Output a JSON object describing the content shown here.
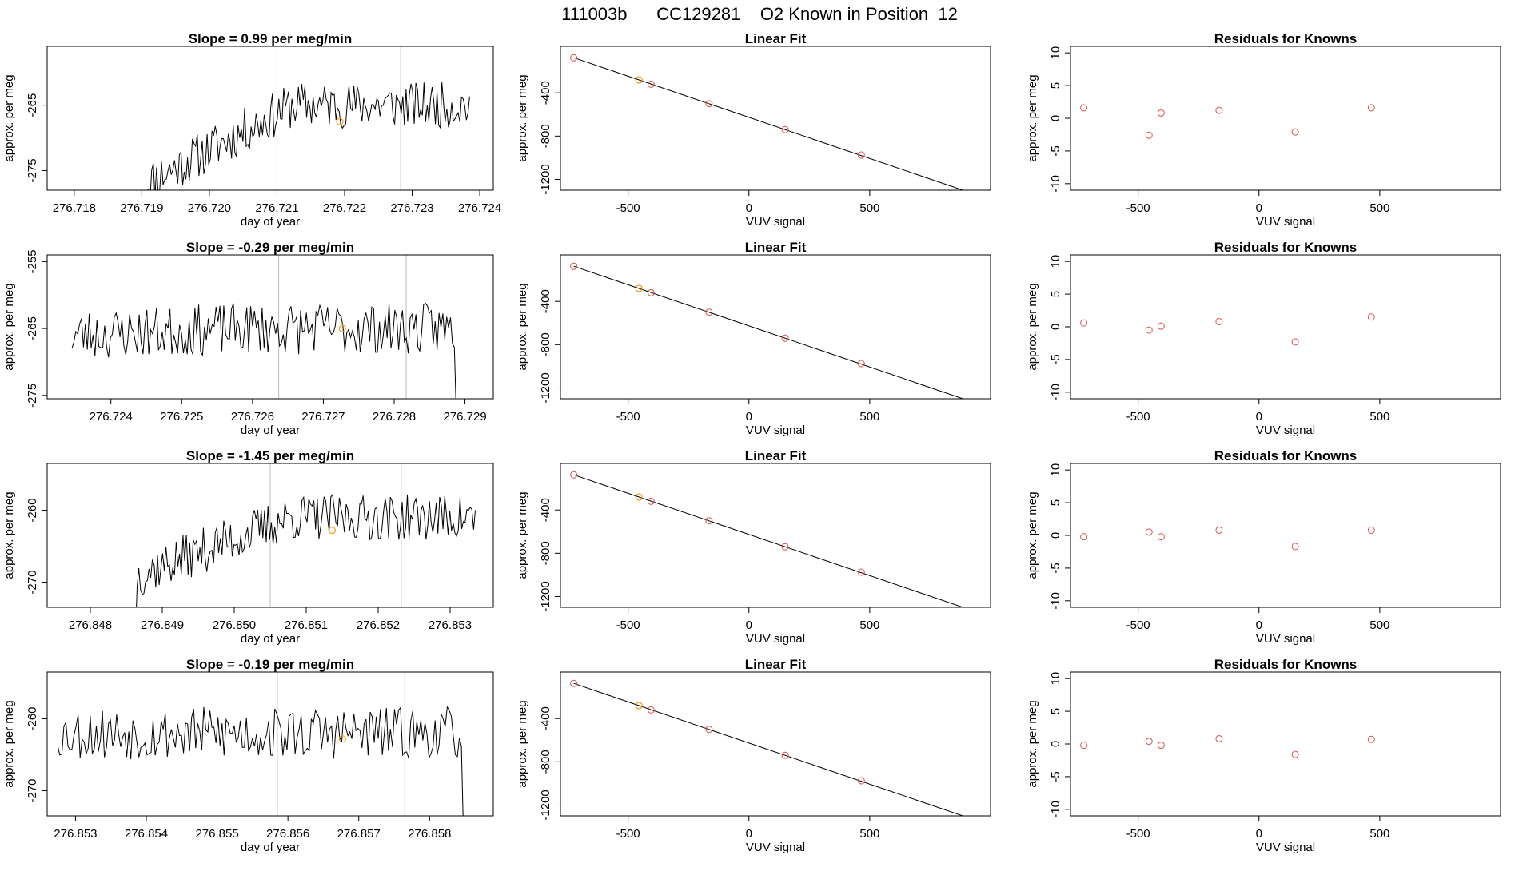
{
  "page_title": "111003b      CC129281    O2 Known in Position  12",
  "colors": {
    "line": "#000000",
    "known_point": "#d9534f",
    "position_point": "#f0a020",
    "frame": "#000000",
    "vline": "#bbbbbb"
  },
  "chart_data": [
    {
      "type": "line",
      "row": 0,
      "col": 0,
      "title": "Slope =  0.99  per meg/min",
      "xlabel": "day of year",
      "ylabel": "approx. per meg",
      "xlim": [
        276.7176,
        276.7242
      ],
      "ylim": [
        -278,
        -256
      ],
      "xticks": [
        276.718,
        276.719,
        276.72,
        276.721,
        276.722,
        276.723,
        276.724
      ],
      "xtick_labels": [
        "276.718",
        "276.719",
        "276.720",
        "276.721",
        "276.722",
        "276.723",
        "276.724"
      ],
      "yticks": [
        -275,
        -265
      ],
      "ytick_labels": [
        "-275",
        "-265"
      ],
      "vlines": [
        276.721,
        276.72283
      ],
      "series": [
        {
          "x_start": 276.71905,
          "x_end": 276.72385,
          "n": 200,
          "base_start": -277,
          "base_end": -265,
          "noise": 2.2,
          "seed": 11,
          "tail": "none",
          "head_drop": true
        }
      ],
      "highlight": {
        "x": 276.72193,
        "y": -267.5
      }
    },
    {
      "type": "scatter",
      "row": 0,
      "col": 1,
      "title": "Linear Fit",
      "xlabel": "VUV signal",
      "ylabel": "approx. per meg",
      "xlim": [
        -780,
        1000
      ],
      "ylim": [
        -1300,
        30
      ],
      "xticks": [
        -500,
        0,
        500
      ],
      "xtick_labels": [
        "-500",
        "0",
        "500"
      ],
      "yticks": [
        -1200,
        -800,
        -400
      ],
      "ytick_labels": [
        "-1200",
        "-800",
        "-400"
      ],
      "fit_line": {
        "x": [
          -725,
          945
        ],
        "y": [
          -75,
          -1345
        ]
      },
      "points": [
        {
          "x": -725,
          "y": -75
        },
        {
          "x": -455,
          "y": -280
        },
        {
          "x": -405,
          "y": -320
        },
        {
          "x": -165,
          "y": -500
        },
        {
          "x": 150,
          "y": -740
        },
        {
          "x": 465,
          "y": -975
        }
      ],
      "highlight": {
        "x": -455,
        "y": -280
      }
    },
    {
      "type": "scatter",
      "row": 0,
      "col": 2,
      "title": "Residuals for Knowns",
      "xlabel": "VUV signal",
      "ylabel": "approx. per meg",
      "xlim": [
        -780,
        1000
      ],
      "ylim": [
        -11,
        11
      ],
      "xticks": [
        -500,
        0,
        500
      ],
      "xtick_labels": [
        "-500",
        "0",
        "500"
      ],
      "yticks": [
        -10,
        -5,
        0,
        5,
        10
      ],
      "ytick_labels": [
        "-10",
        "-5",
        "0",
        "5",
        "10"
      ],
      "points": [
        {
          "x": -725,
          "y": 1.6
        },
        {
          "x": -455,
          "y": -2.6
        },
        {
          "x": -405,
          "y": 0.8
        },
        {
          "x": -165,
          "y": 1.2
        },
        {
          "x": 150,
          "y": -2.1
        },
        {
          "x": 465,
          "y": 1.6
        }
      ]
    },
    {
      "type": "line",
      "row": 1,
      "col": 0,
      "title": "Slope =  -0.29  per meg/min",
      "xlabel": "day of year",
      "ylabel": "approx. per meg",
      "xlim": [
        276.7231,
        276.7294
      ],
      "ylim": [
        -275.5,
        -254
      ],
      "xticks": [
        276.724,
        276.725,
        276.726,
        276.727,
        276.728,
        276.729
      ],
      "xtick_labels": [
        "276.724",
        "276.725",
        "276.726",
        "276.727",
        "276.728",
        "276.729"
      ],
      "yticks": [
        -275,
        -265,
        -255
      ],
      "ytick_labels": [
        "-275",
        "-265",
        "-255"
      ],
      "vlines": [
        276.72637,
        276.72817
      ],
      "series": [
        {
          "x_start": 276.72345,
          "x_end": 276.72885,
          "n": 200,
          "base_start": -266,
          "base_end": -265,
          "noise": 2.4,
          "seed": 23,
          "tail": "drop",
          "head_drop": false
        }
      ],
      "highlight": {
        "x": 276.72727,
        "y": -265
      }
    },
    {
      "type": "scatter",
      "row": 1,
      "col": 1,
      "title": "Linear Fit",
      "xlabel": "VUV signal",
      "ylabel": "approx. per meg",
      "xlim": [
        -780,
        1000
      ],
      "ylim": [
        -1300,
        30
      ],
      "xticks": [
        -500,
        0,
        500
      ],
      "xtick_labels": [
        "-500",
        "0",
        "500"
      ],
      "yticks": [
        -1200,
        -800,
        -400
      ],
      "ytick_labels": [
        "-1200",
        "-800",
        "-400"
      ],
      "fit_line": {
        "x": [
          -725,
          945
        ],
        "y": [
          -75,
          -1345
        ]
      },
      "points": [
        {
          "x": -725,
          "y": -75
        },
        {
          "x": -455,
          "y": -280
        },
        {
          "x": -405,
          "y": -320
        },
        {
          "x": -165,
          "y": -500
        },
        {
          "x": 150,
          "y": -740
        },
        {
          "x": 465,
          "y": -975
        }
      ],
      "highlight": {
        "x": -455,
        "y": -280
      }
    },
    {
      "type": "scatter",
      "row": 1,
      "col": 2,
      "title": "Residuals for Knowns",
      "xlabel": "VUV signal",
      "ylabel": "approx. per meg",
      "xlim": [
        -780,
        1000
      ],
      "ylim": [
        -11,
        11
      ],
      "xticks": [
        -500,
        0,
        500
      ],
      "xtick_labels": [
        "-500",
        "0",
        "500"
      ],
      "yticks": [
        -10,
        -5,
        0,
        5,
        10
      ],
      "ytick_labels": [
        "-10",
        "-5",
        "0",
        "5",
        "10"
      ],
      "points": [
        {
          "x": -725,
          "y": 0.6
        },
        {
          "x": -455,
          "y": -0.5
        },
        {
          "x": -405,
          "y": 0.1
        },
        {
          "x": -165,
          "y": 0.8
        },
        {
          "x": 150,
          "y": -2.3
        },
        {
          "x": 465,
          "y": 1.5
        }
      ]
    },
    {
      "type": "line",
      "row": 2,
      "col": 0,
      "title": "Slope =  -1.45  per meg/min",
      "xlabel": "day of year",
      "ylabel": "approx. per meg",
      "xlim": [
        276.8474,
        276.8536
      ],
      "ylim": [
        -273.5,
        -253.5
      ],
      "xticks": [
        276.848,
        276.849,
        276.85,
        276.851,
        276.852,
        276.853
      ],
      "xtick_labels": [
        "276.848",
        "276.849",
        "276.850",
        "276.851",
        "276.852",
        "276.853"
      ],
      "yticks": [
        -270,
        -260
      ],
      "ytick_labels": [
        "-270",
        "-260"
      ],
      "vlines": [
        276.8505,
        276.85232
      ],
      "series": [
        {
          "x_start": 276.84865,
          "x_end": 276.85335,
          "n": 200,
          "base_start": -269,
          "base_end": -261,
          "noise": 2.0,
          "seed": 37,
          "tail": "none",
          "head_drop": true
        }
      ],
      "highlight": {
        "x": 276.85136,
        "y": -262.8
      }
    },
    {
      "type": "scatter",
      "row": 2,
      "col": 1,
      "title": "Linear Fit",
      "xlabel": "VUV signal",
      "ylabel": "approx. per meg",
      "xlim": [
        -780,
        1000
      ],
      "ylim": [
        -1300,
        30
      ],
      "xticks": [
        -500,
        0,
        500
      ],
      "xtick_labels": [
        "-500",
        "0",
        "500"
      ],
      "yticks": [
        -1200,
        -800,
        -400
      ],
      "ytick_labels": [
        "-1200",
        "-800",
        "-400"
      ],
      "fit_line": {
        "x": [
          -725,
          945
        ],
        "y": [
          -75,
          -1345
        ]
      },
      "points": [
        {
          "x": -725,
          "y": -75
        },
        {
          "x": -455,
          "y": -280
        },
        {
          "x": -405,
          "y": -320
        },
        {
          "x": -165,
          "y": -500
        },
        {
          "x": 150,
          "y": -740
        },
        {
          "x": 465,
          "y": -975
        }
      ],
      "highlight": {
        "x": -455,
        "y": -280
      }
    },
    {
      "type": "scatter",
      "row": 2,
      "col": 2,
      "title": "Residuals for Knowns",
      "xlabel": "VUV signal",
      "ylabel": "approx. per meg",
      "xlim": [
        -780,
        1000
      ],
      "ylim": [
        -11,
        11
      ],
      "xticks": [
        -500,
        0,
        500
      ],
      "xtick_labels": [
        "-500",
        "0",
        "500"
      ],
      "yticks": [
        -10,
        -5,
        0,
        5,
        10
      ],
      "ytick_labels": [
        "-10",
        "-5",
        "0",
        "5",
        "10"
      ],
      "points": [
        {
          "x": -725,
          "y": -0.2
        },
        {
          "x": -455,
          "y": 0.5
        },
        {
          "x": -405,
          "y": -0.2
        },
        {
          "x": -165,
          "y": 0.8
        },
        {
          "x": 150,
          "y": -1.7
        },
        {
          "x": 465,
          "y": 0.8
        }
      ]
    },
    {
      "type": "line",
      "row": 3,
      "col": 0,
      "title": "Slope =  -0.19  per meg/min",
      "xlabel": "day of year",
      "ylabel": "approx. per meg",
      "xlim": [
        276.8526,
        276.8589
      ],
      "ylim": [
        -273.5,
        -253.5
      ],
      "xticks": [
        276.853,
        276.854,
        276.855,
        276.856,
        276.857,
        276.858
      ],
      "xtick_labels": [
        "276.853",
        "276.854",
        "276.855",
        "276.856",
        "276.857",
        "276.858"
      ],
      "yticks": [
        -270,
        -260
      ],
      "ytick_labels": [
        "-270",
        "-260"
      ],
      "vlines": [
        276.85585,
        276.85765
      ],
      "series": [
        {
          "x_start": 276.85275,
          "x_end": 276.85845,
          "n": 200,
          "base_start": -262,
          "base_end": -262,
          "noise": 2.3,
          "seed": 53,
          "tail": "drop",
          "head_drop": false
        }
      ],
      "highlight": {
        "x": 276.85677,
        "y": -262.8
      }
    },
    {
      "type": "scatter",
      "row": 3,
      "col": 1,
      "title": "Linear Fit",
      "xlabel": "VUV signal",
      "ylabel": "approx. per meg",
      "xlim": [
        -780,
        1000
      ],
      "ylim": [
        -1300,
        30
      ],
      "xticks": [
        -500,
        0,
        500
      ],
      "xtick_labels": [
        "-500",
        "0",
        "500"
      ],
      "yticks": [
        -1200,
        -800,
        -400
      ],
      "ytick_labels": [
        "-1200",
        "-800",
        "-400"
      ],
      "fit_line": {
        "x": [
          -725,
          945
        ],
        "y": [
          -75,
          -1345
        ]
      },
      "points": [
        {
          "x": -725,
          "y": -75
        },
        {
          "x": -455,
          "y": -280
        },
        {
          "x": -405,
          "y": -320
        },
        {
          "x": -165,
          "y": -500
        },
        {
          "x": 150,
          "y": -740
        },
        {
          "x": 465,
          "y": -975
        }
      ],
      "highlight": {
        "x": -455,
        "y": -280
      }
    },
    {
      "type": "scatter",
      "row": 3,
      "col": 2,
      "title": "Residuals for Knowns",
      "xlabel": "VUV signal",
      "ylabel": "approx. per meg",
      "xlim": [
        -780,
        1000
      ],
      "ylim": [
        -11,
        11
      ],
      "xticks": [
        -500,
        0,
        500
      ],
      "xtick_labels": [
        "-500",
        "0",
        "500"
      ],
      "yticks": [
        -10,
        -5,
        0,
        5,
        10
      ],
      "ytick_labels": [
        "-10",
        "-5",
        "0",
        "5",
        "10"
      ],
      "points": [
        {
          "x": -725,
          "y": -0.2
        },
        {
          "x": -455,
          "y": 0.4
        },
        {
          "x": -405,
          "y": -0.2
        },
        {
          "x": -165,
          "y": 0.8
        },
        {
          "x": 150,
          "y": -1.6
        },
        {
          "x": 465,
          "y": 0.7
        }
      ]
    }
  ]
}
